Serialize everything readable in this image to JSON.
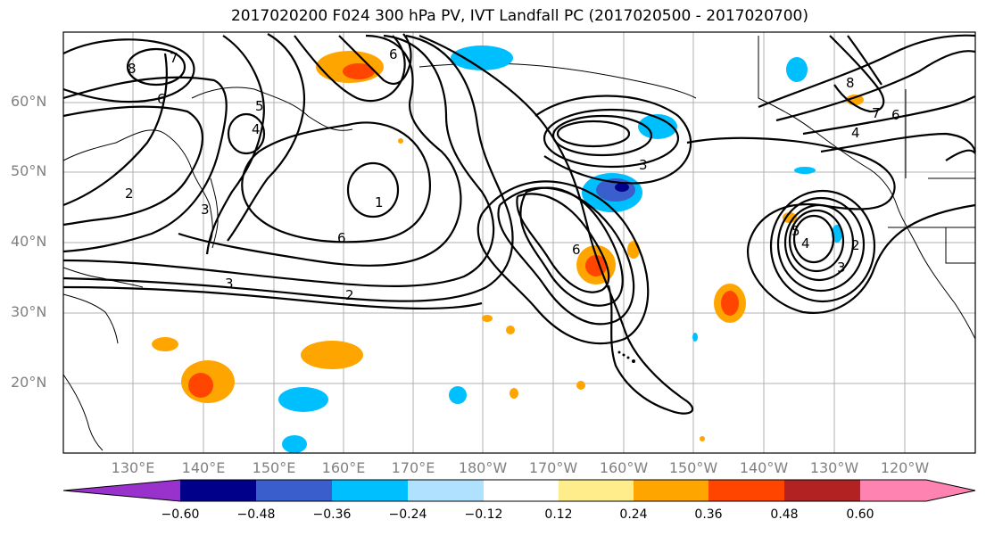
{
  "title": "2017020200 F024 300 hPa PV, IVT Landfall PC (2017020500 - 2017020700)",
  "lat_labels": [
    "60°N",
    "50°N",
    "40°N",
    "30°N",
    "20°N"
  ],
  "lon_labels": [
    "130°E",
    "140°E",
    "150°E",
    "160°E",
    "170°E",
    "180°W",
    "170°W",
    "160°W",
    "150°W",
    "140°W",
    "130°W",
    "120°W"
  ],
  "contour_labels": [
    "8",
    "7",
    "6",
    "5",
    "4",
    "3",
    "2",
    "1",
    "6",
    "2",
    "3",
    "6",
    "3",
    "4",
    "8",
    "7",
    "6",
    "5",
    "4",
    "3",
    "2",
    "6"
  ],
  "colorbar": {
    "ticks": [
      "−0.60",
      "−0.48",
      "−0.36",
      "−0.24",
      "−0.12",
      "0.12",
      "0.24",
      "0.36",
      "0.48",
      "0.60"
    ],
    "colors": [
      "#9932cc",
      "#00008b",
      "#3a5fcd",
      "#00bfff",
      "#b0e2ff",
      "#ffffff",
      "#ffec8b",
      "#ffa500",
      "#ff4500",
      "#b22222",
      "#ff83b0"
    ]
  }
}
